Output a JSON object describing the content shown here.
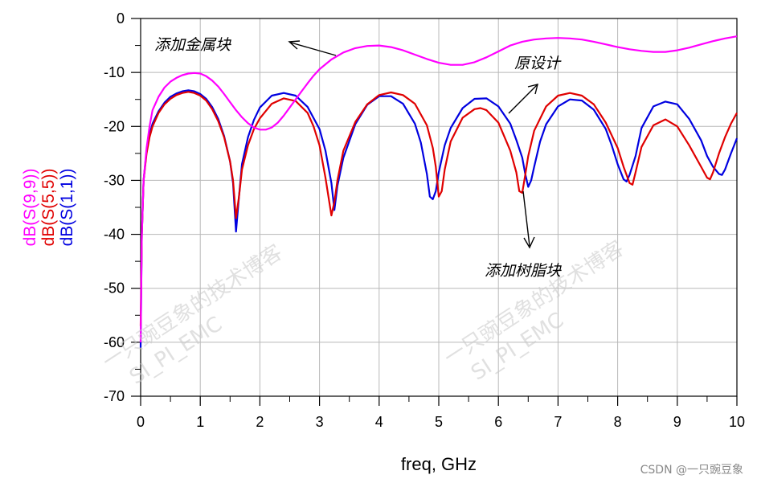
{
  "chart_data": {
    "type": "line",
    "xlabel": "freq, GHz",
    "xlim": [
      0,
      10
    ],
    "ylim": [
      -70,
      0
    ],
    "x_ticks": [
      0,
      1,
      2,
      3,
      4,
      5,
      6,
      7,
      8,
      9,
      10
    ],
    "y_ticks": [
      0,
      -10,
      -20,
      -30,
      -40,
      -50,
      -60,
      -70
    ],
    "grid": true,
    "series": [
      {
        "name": "dB(S(9,9))",
        "color": "#ff00ff",
        "x": [
          0.0,
          0.02,
          0.05,
          0.1,
          0.15,
          0.2,
          0.3,
          0.4,
          0.5,
          0.6,
          0.7,
          0.8,
          0.9,
          1.0,
          1.1,
          1.2,
          1.3,
          1.4,
          1.5,
          1.6,
          1.7,
          1.8,
          1.9,
          2.0,
          2.1,
          2.2,
          2.3,
          2.4,
          2.5,
          2.6,
          2.7,
          2.8,
          2.9,
          3.0,
          3.2,
          3.4,
          3.6,
          3.8,
          4.0,
          4.2,
          4.4,
          4.6,
          4.8,
          5.0,
          5.2,
          5.4,
          5.6,
          5.8,
          6.0,
          6.2,
          6.4,
          6.6,
          6.8,
          7.0,
          7.2,
          7.4,
          7.6,
          7.8,
          8.0,
          8.2,
          8.4,
          8.6,
          8.8,
          9.0,
          9.2,
          9.4,
          9.6,
          9.8,
          10.0
        ],
        "y": [
          -60,
          -40,
          -30,
          -24,
          -20,
          -17,
          -14.5,
          -12.8,
          -11.7,
          -11.0,
          -10.5,
          -10.2,
          -10.1,
          -10.2,
          -10.7,
          -11.5,
          -12.6,
          -14.0,
          -15.5,
          -17.0,
          -18.3,
          -19.4,
          -20.2,
          -20.6,
          -20.6,
          -20.2,
          -19.3,
          -18.0,
          -16.5,
          -15.0,
          -13.5,
          -12.0,
          -10.6,
          -9.4,
          -7.6,
          -6.3,
          -5.5,
          -5.1,
          -5.0,
          -5.3,
          -5.9,
          -6.7,
          -7.5,
          -8.2,
          -8.6,
          -8.6,
          -8.1,
          -7.2,
          -6.1,
          -5.0,
          -4.3,
          -3.9,
          -3.7,
          -3.6,
          -3.7,
          -3.9,
          -4.3,
          -4.8,
          -5.3,
          -5.7,
          -6.0,
          -6.2,
          -6.2,
          -5.9,
          -5.4,
          -4.8,
          -4.2,
          -3.7,
          -3.3
        ]
      },
      {
        "name": "dB(S(5,5))",
        "color": "#e00000",
        "x": [
          0.0,
          0.02,
          0.05,
          0.1,
          0.15,
          0.2,
          0.3,
          0.4,
          0.5,
          0.6,
          0.7,
          0.8,
          0.9,
          1.0,
          1.1,
          1.2,
          1.3,
          1.4,
          1.5,
          1.55,
          1.6,
          1.65,
          1.7,
          1.8,
          1.9,
          2.0,
          2.2,
          2.4,
          2.6,
          2.8,
          2.9,
          3.0,
          3.1,
          3.15,
          3.2,
          3.25,
          3.3,
          3.4,
          3.6,
          3.8,
          4.0,
          4.2,
          4.4,
          4.6,
          4.8,
          4.9,
          4.95,
          5.0,
          5.05,
          5.1,
          5.2,
          5.4,
          5.6,
          5.7,
          5.8,
          6.0,
          6.2,
          6.3,
          6.35,
          6.4,
          6.45,
          6.5,
          6.6,
          6.8,
          7.0,
          7.2,
          7.4,
          7.6,
          7.8,
          8.0,
          8.1,
          8.2,
          8.25,
          8.3,
          8.4,
          8.6,
          8.8,
          9.0,
          9.2,
          9.4,
          9.5,
          9.55,
          9.6,
          9.7,
          9.8,
          9.9,
          10.0
        ],
        "y": [
          -57,
          -40,
          -30,
          -25,
          -22,
          -20,
          -17.5,
          -15.9,
          -14.9,
          -14.2,
          -13.8,
          -13.6,
          -13.8,
          -14.3,
          -15.2,
          -16.8,
          -19.0,
          -22.0,
          -26.5,
          -30,
          -37,
          -33,
          -28,
          -23.5,
          -20.5,
          -18.5,
          -15.8,
          -14.8,
          -15.3,
          -17.5,
          -20.0,
          -23.5,
          -29.5,
          -33,
          -36.5,
          -34,
          -30,
          -24.5,
          -19.2,
          -15.9,
          -14.2,
          -13.7,
          -14.2,
          -15.8,
          -19.8,
          -24,
          -27.5,
          -33,
          -32,
          -28,
          -22.8,
          -18.4,
          -16.8,
          -16.6,
          -17.0,
          -19.3,
          -24.5,
          -28.5,
          -32,
          -32.3,
          -29,
          -25.5,
          -20.8,
          -16.3,
          -14.3,
          -13.8,
          -14.3,
          -15.9,
          -19.3,
          -24.0,
          -27.5,
          -30.5,
          -30.8,
          -28.5,
          -23.8,
          -19.8,
          -18.7,
          -20.0,
          -23.5,
          -27.5,
          -29.5,
          -29.8,
          -28.5,
          -25,
          -22,
          -19.5,
          -17.5
        ]
      },
      {
        "name": "dB(S(1,1))",
        "color": "#0000e0",
        "x": [
          0.0,
          0.02,
          0.05,
          0.1,
          0.15,
          0.2,
          0.3,
          0.4,
          0.5,
          0.6,
          0.7,
          0.8,
          0.9,
          1.0,
          1.1,
          1.2,
          1.3,
          1.4,
          1.5,
          1.55,
          1.6,
          1.65,
          1.7,
          1.8,
          1.9,
          2.0,
          2.2,
          2.4,
          2.6,
          2.8,
          3.0,
          3.1,
          3.2,
          3.25,
          3.3,
          3.4,
          3.6,
          3.8,
          4.0,
          4.2,
          4.4,
          4.6,
          4.7,
          4.8,
          4.85,
          4.9,
          4.95,
          5.0,
          5.1,
          5.2,
          5.4,
          5.6,
          5.8,
          6.0,
          6.2,
          6.3,
          6.4,
          6.45,
          6.5,
          6.55,
          6.6,
          6.7,
          6.8,
          7.0,
          7.2,
          7.4,
          7.6,
          7.8,
          7.9,
          8.0,
          8.1,
          8.15,
          8.2,
          8.3,
          8.4,
          8.6,
          8.8,
          9.0,
          9.2,
          9.4,
          9.5,
          9.6,
          9.7,
          9.75,
          9.8,
          9.9,
          10.0
        ],
        "y": [
          -61,
          -40,
          -30,
          -24.5,
          -21.5,
          -19.5,
          -17.2,
          -15.6,
          -14.5,
          -13.9,
          -13.5,
          -13.3,
          -13.5,
          -14.0,
          -14.9,
          -16.4,
          -18.6,
          -21.8,
          -26.5,
          -30.5,
          -39.5,
          -33,
          -27,
          -22,
          -18.8,
          -16.5,
          -14.3,
          -13.8,
          -14.3,
          -16.4,
          -20.5,
          -24.5,
          -30.5,
          -35.5,
          -31,
          -25.8,
          -19.6,
          -16.0,
          -14.4,
          -14.4,
          -15.8,
          -19.5,
          -23.0,
          -28.8,
          -33,
          -33.5,
          -32,
          -28.5,
          -23.5,
          -20.3,
          -16.6,
          -14.9,
          -14.8,
          -16.3,
          -19.5,
          -22.5,
          -25.8,
          -28.8,
          -31.2,
          -30,
          -27.5,
          -22.8,
          -19.6,
          -16.3,
          -15.0,
          -15.2,
          -16.9,
          -20.5,
          -23.5,
          -27.0,
          -29.8,
          -30.2,
          -29.0,
          -25.5,
          -20.3,
          -16.3,
          -15.4,
          -15.9,
          -18.6,
          -22.6,
          -25.5,
          -27.5,
          -28.8,
          -29,
          -28,
          -25,
          -22.2
        ]
      }
    ],
    "annotations": [
      "添加金属块",
      "原设计",
      "添加树脂块"
    ]
  },
  "watermark": {
    "line1": "一只豌豆象的技术博客",
    "line2": "SI_PI_EMC"
  },
  "credit": "CSDN @一只豌豆象"
}
